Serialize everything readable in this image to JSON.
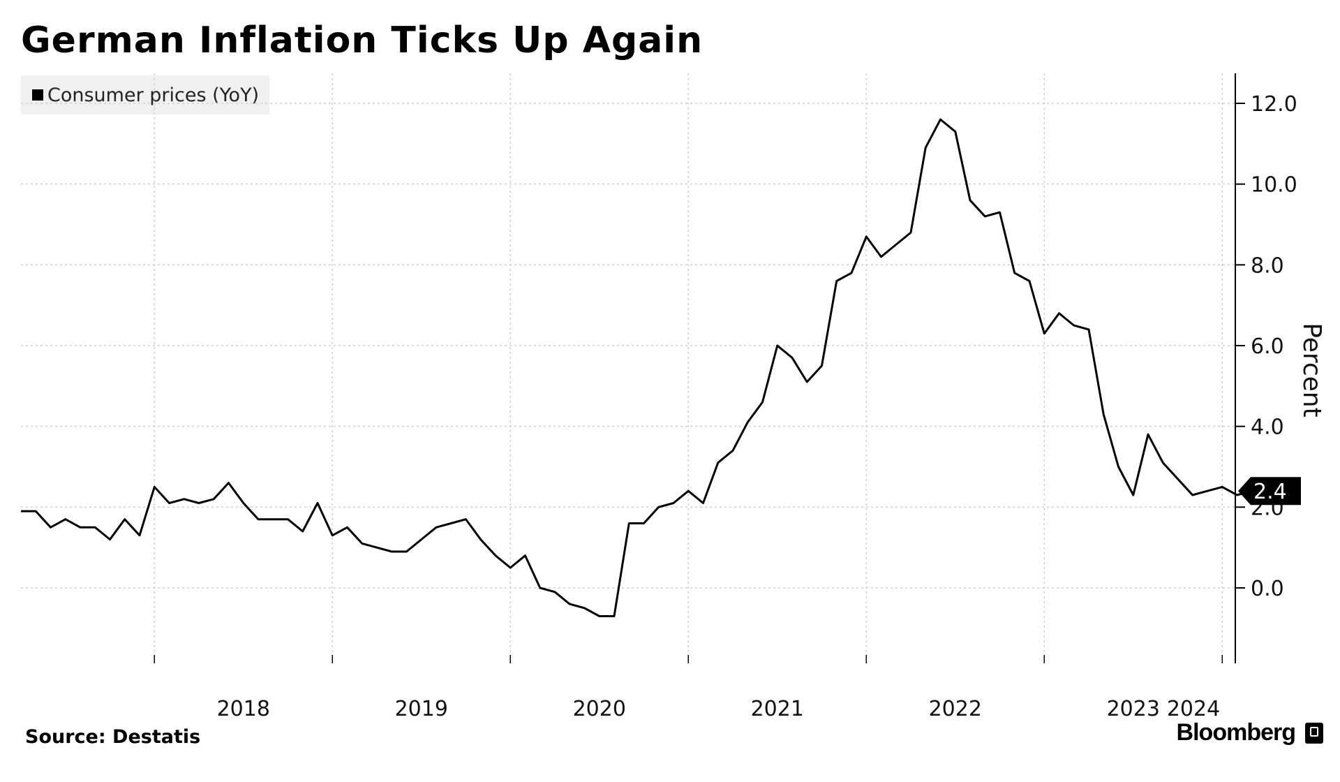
{
  "chart_data": {
    "type": "line",
    "title": "German Inflation Ticks Up Again",
    "legend": [
      "Consumer prices (YoY)"
    ],
    "legend_position": "top-left",
    "ylabel": "Percent",
    "ylim": [
      -1.9,
      12.8
    ],
    "yticks": [
      "0.0",
      "2.0",
      "4.0",
      "6.0",
      "8.0",
      "10.0",
      "12.0"
    ],
    "xticks": [
      "2018",
      "2019",
      "2020",
      "2021",
      "2022",
      "2023",
      "2024"
    ],
    "grid": true,
    "last_value_label": "2.4",
    "series": [
      {
        "name": "Consumer prices (YoY)",
        "x": [
          "2017-04",
          "2017-05",
          "2017-06",
          "2017-07",
          "2017-08",
          "2017-09",
          "2017-10",
          "2017-11",
          "2017-12",
          "2018-01",
          "2018-02",
          "2018-03",
          "2018-04",
          "2018-05",
          "2018-06",
          "2018-07",
          "2018-08",
          "2018-09",
          "2018-10",
          "2018-11",
          "2018-12",
          "2019-01",
          "2019-02",
          "2019-03",
          "2019-04",
          "2019-05",
          "2019-06",
          "2019-07",
          "2019-08",
          "2019-09",
          "2019-10",
          "2019-11",
          "2019-12",
          "2020-01",
          "2020-02",
          "2020-03",
          "2020-04",
          "2020-05",
          "2020-06",
          "2020-07",
          "2020-08",
          "2020-09",
          "2020-10",
          "2020-11",
          "2020-12",
          "2021-01",
          "2021-02",
          "2021-03",
          "2021-04",
          "2021-05",
          "2021-06",
          "2021-07",
          "2021-08",
          "2021-09",
          "2021-10",
          "2021-11",
          "2021-12",
          "2022-01",
          "2022-02",
          "2022-03",
          "2022-04",
          "2022-05",
          "2022-06",
          "2022-07",
          "2022-08",
          "2022-09",
          "2022-10",
          "2022-11",
          "2022-12",
          "2023-01",
          "2023-02",
          "2023-03",
          "2023-04",
          "2023-05",
          "2023-06",
          "2023-07",
          "2023-08",
          "2023-09",
          "2023-10",
          "2023-11",
          "2023-12",
          "2024-01",
          "2024-02",
          "2024-03",
          "2024-04"
        ],
        "values": [
          1.9,
          1.9,
          1.5,
          1.7,
          1.5,
          1.5,
          1.2,
          1.7,
          1.3,
          2.5,
          2.1,
          2.2,
          2.1,
          2.2,
          2.6,
          2.1,
          1.7,
          1.7,
          1.7,
          1.4,
          2.1,
          1.3,
          1.5,
          1.1,
          1.0,
          0.9,
          0.9,
          1.2,
          1.5,
          1.6,
          1.7,
          1.2,
          0.8,
          0.5,
          0.8,
          0.0,
          -0.1,
          -0.4,
          -0.5,
          -0.7,
          -0.7,
          1.6,
          1.6,
          2.0,
          2.1,
          2.4,
          2.1,
          3.1,
          3.4,
          4.1,
          4.6,
          6.0,
          5.7,
          5.1,
          5.5,
          7.6,
          7.8,
          8.7,
          8.2,
          8.5,
          8.8,
          10.9,
          11.6,
          11.3,
          9.6,
          9.2,
          9.3,
          7.8,
          7.6,
          6.3,
          6.8,
          6.5,
          6.4,
          4.3,
          3.0,
          2.3,
          3.8,
          3.1,
          2.7,
          2.3,
          2.4,
          2.5,
          2.3,
          2.4,
          2.4
        ]
      }
    ]
  },
  "footer": {
    "source": "Source: Destatis",
    "brand": "Bloomberg"
  }
}
